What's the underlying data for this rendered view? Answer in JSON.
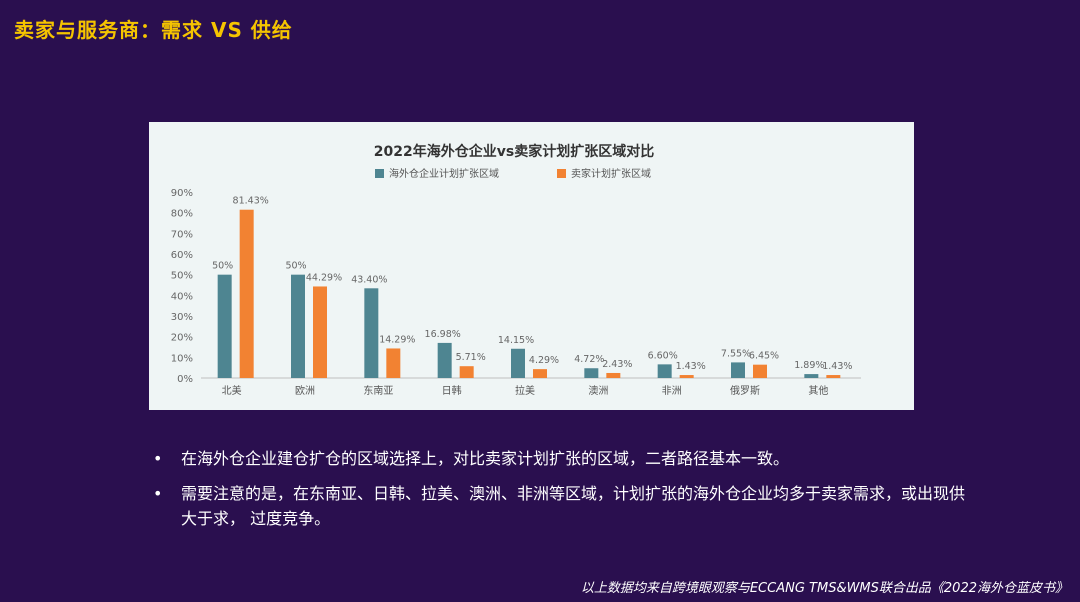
{
  "page": {
    "title": "卖家与服务商：需求 VS 供给"
  },
  "chart_data": {
    "type": "bar",
    "title": "2022年海外仓企业vs卖家计划扩张区域对比",
    "categories": [
      "北美",
      "欧洲",
      "东南亚",
      "日韩",
      "拉美",
      "澳洲",
      "非洲",
      "俄罗斯",
      "其他"
    ],
    "series": [
      {
        "name": "海外仓企业计划扩张区域",
        "color": "#4e8591",
        "values": [
          50,
          50,
          43.4,
          16.98,
          14.15,
          4.72,
          6.6,
          7.55,
          1.89
        ],
        "labels": [
          "50%",
          "50%",
          "43.40%",
          "16.98%",
          "14.15%",
          "4.72%",
          "6.60%",
          "7.55%",
          "1.89%"
        ]
      },
      {
        "name": "卖家计划扩张区域",
        "color": "#f28232",
        "values": [
          81.43,
          44.29,
          14.29,
          5.71,
          4.29,
          2.43,
          1.43,
          6.45,
          1.43
        ],
        "labels": [
          "81.43%",
          "44.29%",
          "14.29%",
          "5.71%",
          "4.29%",
          "2.43%",
          "1.43%",
          "6.45%",
          "1.43%"
        ]
      }
    ],
    "ylim": [
      0,
      90
    ],
    "yticks": [
      "0%",
      "10%",
      "20%",
      "30%",
      "40%",
      "50%",
      "60%",
      "70%",
      "80%",
      "90%"
    ],
    "legend_position": "top-center",
    "grid": false
  },
  "bullets": [
    "在海外仓企业建仓扩仓的区域选择上，对比卖家计划扩张的区域，二者路径基本一致。",
    "需要注意的是，在东南亚、日韩、拉美、澳洲、非洲等区域，计划扩张的海外仓企业均多于卖家需求，或出现供大于求，  过度竞争。"
  ],
  "bullet_symbol": "•",
  "footer": {
    "source": "以上数据均来自跨境眼观察与ECCANG TMS&WMS联合出品《2022海外仓蓝皮书》"
  }
}
